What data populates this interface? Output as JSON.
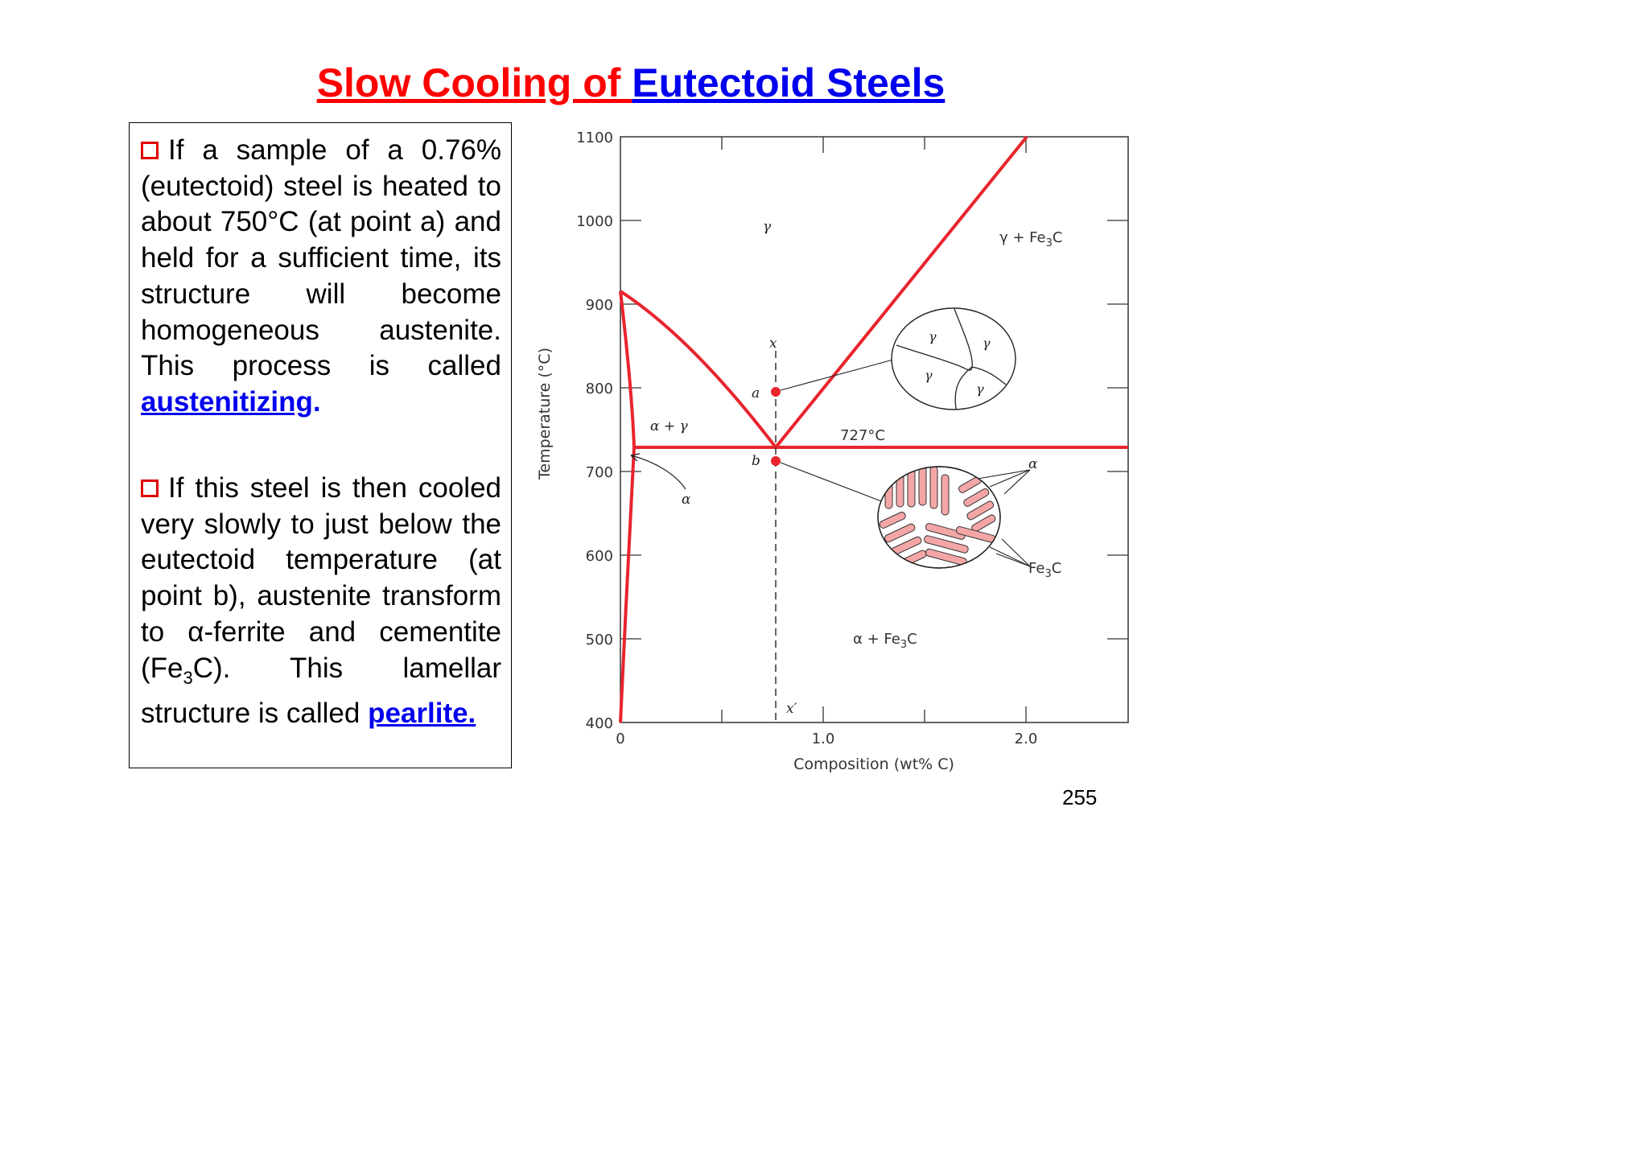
{
  "title": {
    "part1": "Slow Cooling of ",
    "part2": "Eutectoid Steels"
  },
  "paragraph1": {
    "text": "If a sample of a 0.76% (eutectoid) steel is heated to about 750°C (at point a) and held for a sufficient time, its structure will become homogeneous austenite. This process is called ",
    "keyword": "austenitizing",
    "suffix": "."
  },
  "paragraph2": {
    "text_before_sub": "If this steel is then cooled very slowly to just below the eutectoid temperature (at point b), austenite transform to α-ferrite and cementite (Fe",
    "sub": "3",
    "text_after_sub": "C). This lamellar structure is called ",
    "keyword": "pearlite."
  },
  "page_number": "255",
  "diagram": {
    "y_axis_label": "Temperature (°C)",
    "x_axis_label": "Composition (wt% C)",
    "y_ticks": [
      "1100",
      "1000",
      "900",
      "800",
      "700",
      "600",
      "500",
      "400"
    ],
    "x_ticks": [
      "0",
      "1.0",
      "2.0"
    ],
    "regions": {
      "gamma": "γ",
      "gamma_fe3c": "γ + Fe",
      "alpha_gamma": "α + γ",
      "alpha": "α",
      "alpha_fe3c": "α + Fe",
      "sub3": "3",
      "c": "C"
    },
    "eutectoid_temp_label": "727°C",
    "point_a": "a",
    "point_b": "b",
    "line_x_top": "x",
    "line_x_bottom": "x′",
    "micro_top": {
      "grain_label": "γ"
    },
    "micro_bottom": {
      "alpha_label": "α",
      "fe3c_label": "Fe",
      "fe3c_sub": "3",
      "fe3c_c": "C"
    },
    "colors": {
      "phase_lines": "#e8242e",
      "points": "#e8242e",
      "lamellae_fill": "#f4a6a6"
    }
  }
}
